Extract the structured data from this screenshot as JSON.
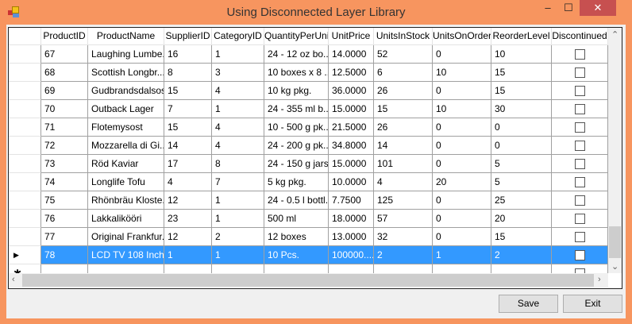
{
  "window": {
    "title": "Using Disconnected Layer Library",
    "minimize": "–",
    "maximize": "☐",
    "close": "✕"
  },
  "grid": {
    "columns": [
      "ProductID",
      "ProductName",
      "SupplierID",
      "CategoryID",
      "QuantityPerUnit",
      "UnitPrice",
      "UnitsInStock",
      "UnitsOnOrder",
      "ReorderLevel",
      "Discontinued"
    ],
    "rows": [
      [
        "67",
        "Laughing Lumbe...",
        "16",
        "1",
        "24 - 12 oz bo...",
        "14.0000",
        "52",
        "0",
        "10",
        false
      ],
      [
        "68",
        "Scottish Longbr...",
        "8",
        "3",
        "10 boxes x 8 ...",
        "12.5000",
        "6",
        "10",
        "15",
        false
      ],
      [
        "69",
        "Gudbrandsdalsost",
        "15",
        "4",
        "10 kg pkg.",
        "36.0000",
        "26",
        "0",
        "15",
        false
      ],
      [
        "70",
        "Outback Lager",
        "7",
        "1",
        "24 - 355 ml b...",
        "15.0000",
        "15",
        "10",
        "30",
        false
      ],
      [
        "71",
        "Flotemysost",
        "15",
        "4",
        "10 - 500 g pk...",
        "21.5000",
        "26",
        "0",
        "0",
        false
      ],
      [
        "72",
        "Mozzarella di Gi...",
        "14",
        "4",
        "24 - 200 g pk...",
        "34.8000",
        "14",
        "0",
        "0",
        false
      ],
      [
        "73",
        "Röd Kaviar",
        "17",
        "8",
        "24 - 150 g jars",
        "15.0000",
        "101",
        "0",
        "5",
        false
      ],
      [
        "74",
        "Longlife Tofu",
        "4",
        "7",
        "5 kg pkg.",
        "10.0000",
        "4",
        "20",
        "5",
        false
      ],
      [
        "75",
        "Rhönbräu Kloste...",
        "12",
        "1",
        "24 - 0.5 l bottl...",
        "7.7500",
        "125",
        "0",
        "25",
        false
      ],
      [
        "76",
        "Lakkalikööri",
        "23",
        "1",
        "500 ml",
        "18.0000",
        "57",
        "0",
        "20",
        false
      ],
      [
        "77",
        "Original Frankfur...",
        "12",
        "2",
        "12 boxes",
        "13.0000",
        "32",
        "0",
        "15",
        false
      ],
      [
        "78",
        "LCD TV 108 Inch",
        "1",
        "1",
        "10 Pcs.",
        "100000....",
        "2",
        "1",
        "2",
        false
      ]
    ],
    "selected_row": 11,
    "current_row_marker": "▶",
    "new_row_marker": "✱",
    "selection_color": "#3399ff"
  },
  "buttons": {
    "save": "Save",
    "exit": "Exit"
  }
}
